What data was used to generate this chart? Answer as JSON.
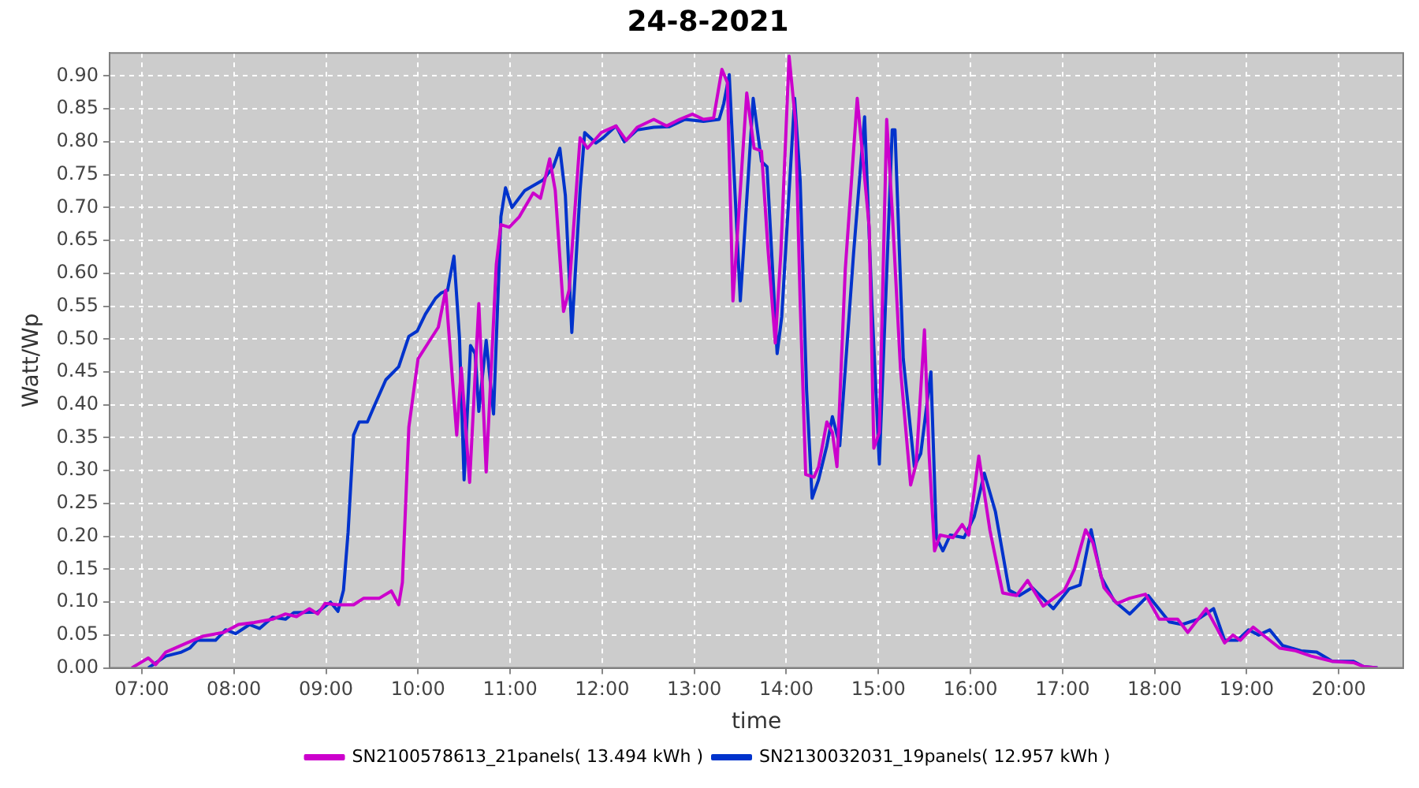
{
  "chart_data": {
    "type": "line",
    "title": "24-8-2021",
    "xlabel": "time",
    "ylabel": "Watt/Wp",
    "xlim": [
      6.65,
      20.7
    ],
    "ylim": [
      0,
      0.935
    ],
    "xticks": [
      {
        "value": 7,
        "label": "07:00"
      },
      {
        "value": 8,
        "label": "08:00"
      },
      {
        "value": 9,
        "label": "09:00"
      },
      {
        "value": 10,
        "label": "10:00"
      },
      {
        "value": 11,
        "label": "11:00"
      },
      {
        "value": 12,
        "label": "12:00"
      },
      {
        "value": 13,
        "label": "13:00"
      },
      {
        "value": 14,
        "label": "14:00"
      },
      {
        "value": 15,
        "label": "15:00"
      },
      {
        "value": 16,
        "label": "16:00"
      },
      {
        "value": 17,
        "label": "17:00"
      },
      {
        "value": 18,
        "label": "18:00"
      },
      {
        "value": 19,
        "label": "19:00"
      },
      {
        "value": 20,
        "label": "20:00"
      }
    ],
    "yticks": [
      {
        "value": 0,
        "label": "0.00"
      },
      {
        "value": 0.05,
        "label": "0.05"
      },
      {
        "value": 0.1,
        "label": "0.10"
      },
      {
        "value": 0.15,
        "label": "0.15"
      },
      {
        "value": 0.2,
        "label": "0.20"
      },
      {
        "value": 0.25,
        "label": "0.25"
      },
      {
        "value": 0.3,
        "label": "0.30"
      },
      {
        "value": 0.35,
        "label": "0.35"
      },
      {
        "value": 0.4,
        "label": "0.40"
      },
      {
        "value": 0.45,
        "label": "0.45"
      },
      {
        "value": 0.5,
        "label": "0.50"
      },
      {
        "value": 0.55,
        "label": "0.55"
      },
      {
        "value": 0.6,
        "label": "0.60"
      },
      {
        "value": 0.65,
        "label": "0.65"
      },
      {
        "value": 0.7,
        "label": "0.70"
      },
      {
        "value": 0.75,
        "label": "0.75"
      },
      {
        "value": 0.8,
        "label": "0.80"
      },
      {
        "value": 0.85,
        "label": "0.85"
      },
      {
        "value": 0.9,
        "label": "0.90"
      }
    ],
    "grid": true,
    "legend": "bottom",
    "line_style": "solid",
    "series": [
      {
        "name": "SN2100578613_21panels( 13.494 kWh )",
        "color": "#cc00cc",
        "x": [
          6.89,
          7.07,
          7.15,
          7.26,
          7.49,
          7.66,
          7.89,
          8.05,
          8.22,
          8.42,
          8.56,
          8.68,
          8.82,
          8.91,
          8.99,
          9.13,
          9.3,
          9.41,
          9.58,
          9.71,
          9.79,
          9.83,
          9.9,
          10.0,
          10.11,
          10.22,
          10.3,
          10.42,
          10.47,
          10.56,
          10.66,
          10.74,
          10.85,
          10.9,
          10.99,
          11.1,
          11.25,
          11.33,
          11.43,
          11.49,
          11.58,
          11.64,
          11.76,
          11.84,
          11.99,
          12.15,
          12.26,
          12.38,
          12.56,
          12.7,
          12.84,
          12.98,
          13.1,
          13.21,
          13.3,
          13.36,
          13.42,
          13.57,
          13.65,
          13.73,
          13.8,
          13.88,
          13.94,
          14.03,
          14.1,
          14.15,
          14.21,
          14.3,
          14.35,
          14.44,
          14.5,
          14.55,
          14.64,
          14.77,
          14.9,
          14.95,
          15.01,
          15.09,
          15.15,
          15.24,
          15.35,
          15.41,
          15.5,
          15.55,
          15.61,
          15.67,
          15.81,
          15.91,
          15.98,
          16.09,
          16.21,
          16.35,
          16.5,
          16.62,
          16.79,
          17.02,
          17.13,
          17.25,
          17.33,
          17.45,
          17.59,
          17.73,
          17.9,
          18.05,
          18.25,
          18.36,
          18.56,
          18.67,
          18.76,
          18.85,
          18.93,
          19.07,
          19.25,
          19.36,
          19.53,
          19.7,
          19.93,
          20.16,
          20.27,
          20.42
        ],
        "values": [
          0,
          0.015,
          0.005,
          0.024,
          0.038,
          0.048,
          0.054,
          0.066,
          0.069,
          0.074,
          0.082,
          0.078,
          0.09,
          0.082,
          0.098,
          0.096,
          0.096,
          0.106,
          0.106,
          0.117,
          0.096,
          0.13,
          0.366,
          0.47,
          0.494,
          0.518,
          0.574,
          0.354,
          0.456,
          0.282,
          0.554,
          0.298,
          0.614,
          0.674,
          0.67,
          0.686,
          0.722,
          0.714,
          0.774,
          0.726,
          0.542,
          0.574,
          0.806,
          0.79,
          0.814,
          0.824,
          0.802,
          0.822,
          0.834,
          0.824,
          0.834,
          0.842,
          0.834,
          0.836,
          0.91,
          0.89,
          0.558,
          0.874,
          0.79,
          0.786,
          0.638,
          0.494,
          0.63,
          0.93,
          0.83,
          0.558,
          0.294,
          0.29,
          0.306,
          0.374,
          0.358,
          0.306,
          0.606,
          0.866,
          0.67,
          0.334,
          0.358,
          0.834,
          0.694,
          0.454,
          0.278,
          0.31,
          0.514,
          0.326,
          0.178,
          0.202,
          0.198,
          0.218,
          0.202,
          0.322,
          0.21,
          0.114,
          0.11,
          0.133,
          0.094,
          0.118,
          0.15,
          0.21,
          0.19,
          0.122,
          0.098,
          0.106,
          0.112,
          0.074,
          0.074,
          0.054,
          0.09,
          0.062,
          0.038,
          0.05,
          0.042,
          0.062,
          0.042,
          0.03,
          0.026,
          0.018,
          0.01,
          0.008,
          0.002,
          0
        ]
      },
      {
        "name": "SN2130032031_19panels( 12.957 kWh )",
        "color": "#0033cc",
        "x": [
          7.07,
          7.26,
          7.43,
          7.52,
          7.6,
          7.8,
          7.91,
          8.02,
          8.17,
          8.28,
          8.42,
          8.56,
          8.65,
          8.91,
          9.05,
          9.13,
          9.19,
          9.24,
          9.3,
          9.36,
          9.45,
          9.53,
          9.65,
          9.79,
          9.9,
          9.99,
          10.08,
          10.19,
          10.25,
          10.32,
          10.39,
          10.45,
          10.5,
          10.57,
          10.62,
          10.66,
          10.74,
          10.82,
          10.9,
          10.95,
          11.02,
          11.16,
          11.36,
          11.47,
          11.54,
          11.6,
          11.67,
          11.76,
          11.81,
          11.93,
          12.01,
          12.15,
          12.24,
          12.38,
          12.56,
          12.73,
          12.9,
          13.1,
          13.27,
          13.32,
          13.38,
          13.5,
          13.64,
          13.73,
          13.79,
          13.9,
          13.95,
          14.09,
          14.15,
          14.22,
          14.28,
          14.35,
          14.44,
          14.5,
          14.58,
          14.73,
          14.85,
          14.93,
          15.01,
          15.15,
          15.18,
          15.27,
          15.39,
          15.46,
          15.57,
          15.63,
          15.7,
          15.78,
          15.93,
          16.04,
          16.15,
          16.27,
          16.42,
          16.53,
          16.67,
          16.9,
          17.07,
          17.19,
          17.31,
          17.42,
          17.56,
          17.73,
          17.93,
          18.16,
          18.3,
          18.47,
          18.64,
          18.76,
          18.9,
          19.02,
          19.13,
          19.25,
          19.39,
          19.59,
          19.76,
          19.93,
          20.16,
          20.27,
          20.42
        ],
        "values": [
          0,
          0.018,
          0.024,
          0.03,
          0.042,
          0.042,
          0.058,
          0.052,
          0.066,
          0.06,
          0.077,
          0.074,
          0.084,
          0.085,
          0.1,
          0.086,
          0.118,
          0.206,
          0.354,
          0.374,
          0.374,
          0.4,
          0.438,
          0.458,
          0.504,
          0.512,
          0.538,
          0.562,
          0.57,
          0.574,
          0.626,
          0.502,
          0.286,
          0.49,
          0.478,
          0.39,
          0.498,
          0.386,
          0.686,
          0.73,
          0.7,
          0.726,
          0.742,
          0.762,
          0.79,
          0.718,
          0.51,
          0.726,
          0.814,
          0.798,
          0.806,
          0.824,
          0.8,
          0.818,
          0.822,
          0.823,
          0.834,
          0.831,
          0.834,
          0.858,
          0.902,
          0.558,
          0.866,
          0.77,
          0.762,
          0.478,
          0.534,
          0.866,
          0.742,
          0.422,
          0.258,
          0.286,
          0.338,
          0.382,
          0.338,
          0.63,
          0.838,
          0.55,
          0.31,
          0.818,
          0.818,
          0.47,
          0.306,
          0.326,
          0.45,
          0.198,
          0.178,
          0.202,
          0.198,
          0.23,
          0.296,
          0.238,
          0.118,
          0.11,
          0.122,
          0.09,
          0.12,
          0.126,
          0.21,
          0.138,
          0.102,
          0.082,
          0.11,
          0.07,
          0.066,
          0.074,
          0.09,
          0.042,
          0.042,
          0.058,
          0.05,
          0.058,
          0.034,
          0.026,
          0.024,
          0.01,
          0.01,
          0.002,
          0
        ]
      }
    ]
  }
}
